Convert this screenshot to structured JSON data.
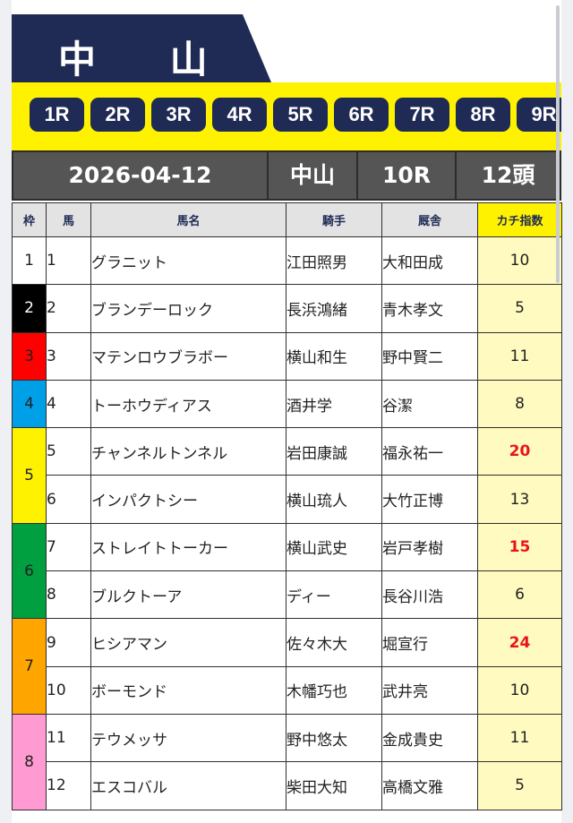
{
  "header": {
    "venue_title": "中 山",
    "colors": {
      "navy": "#1f2b55",
      "yellow": "#fff200"
    }
  },
  "races": [
    "1R",
    "2R",
    "3R",
    "4R",
    "5R",
    "6R",
    "7R",
    "8R",
    "9R"
  ],
  "info": {
    "date": "2026-04-12",
    "venue": "中山",
    "race": "10R",
    "count": "12頭"
  },
  "columns": {
    "waku": "枠",
    "uma": "馬",
    "name": "馬名",
    "jockey": "騎手",
    "stable": "厩舎",
    "score": "カチ指数"
  },
  "waku_groups": [
    {
      "label": "1",
      "color": "#ffffff",
      "text_color": "#222222"
    },
    {
      "label": "2",
      "color": "#000000",
      "text_color": "#ffffff"
    },
    {
      "label": "3",
      "color": "#ff0000",
      "text_color": "#222222"
    },
    {
      "label": "4",
      "color": "#00a0e9",
      "text_color": "#222222"
    },
    {
      "label": "5",
      "color": "#fff200",
      "text_color": "#222222"
    },
    {
      "label": "6",
      "color": "#00a040",
      "text_color": "#222222"
    },
    {
      "label": "7",
      "color": "#ffa500",
      "text_color": "#222222"
    },
    {
      "label": "8",
      "color": "#ff9bd2",
      "text_color": "#222222"
    }
  ],
  "entries": [
    {
      "num": "1",
      "name": "グラニット",
      "jockey": "江田照男",
      "stable": "大和田成",
      "score": "10",
      "hot": false
    },
    {
      "num": "2",
      "name": "ブランデーロック",
      "jockey": "長浜鴻緒",
      "stable": "青木孝文",
      "score": "5",
      "hot": false
    },
    {
      "num": "3",
      "name": "マテンロウブラボー",
      "jockey": "横山和生",
      "stable": "野中賢二",
      "score": "11",
      "hot": false
    },
    {
      "num": "4",
      "name": "トーホウディアス",
      "jockey": "酒井学",
      "stable": "谷潔",
      "score": "8",
      "hot": false
    },
    {
      "num": "5",
      "name": "チャンネルトンネル",
      "jockey": "岩田康誠",
      "stable": "福永祐一",
      "score": "20",
      "hot": true
    },
    {
      "num": "6",
      "name": "インパクトシー",
      "jockey": "横山琉人",
      "stable": "大竹正博",
      "score": "13",
      "hot": false
    },
    {
      "num": "7",
      "name": "ストレイトトーカー",
      "jockey": "横山武史",
      "stable": "岩戸孝樹",
      "score": "15",
      "hot": true
    },
    {
      "num": "8",
      "name": "ブルクトーア",
      "jockey": "ディー",
      "stable": "長谷川浩",
      "score": "6",
      "hot": false
    },
    {
      "num": "9",
      "name": "ヒシアマン",
      "jockey": "佐々木大",
      "stable": "堀宣行",
      "score": "24",
      "hot": true
    },
    {
      "num": "10",
      "name": "ボーモンド",
      "jockey": "木幡巧也",
      "stable": "武井亮",
      "score": "10",
      "hot": false
    },
    {
      "num": "11",
      "name": "テウメッサ",
      "jockey": "野中悠太",
      "stable": "金成貴史",
      "score": "11",
      "hot": false
    },
    {
      "num": "12",
      "name": "エスコバル",
      "jockey": "柴田大知",
      "stable": "高橋文雅",
      "score": "5",
      "hot": false
    }
  ]
}
